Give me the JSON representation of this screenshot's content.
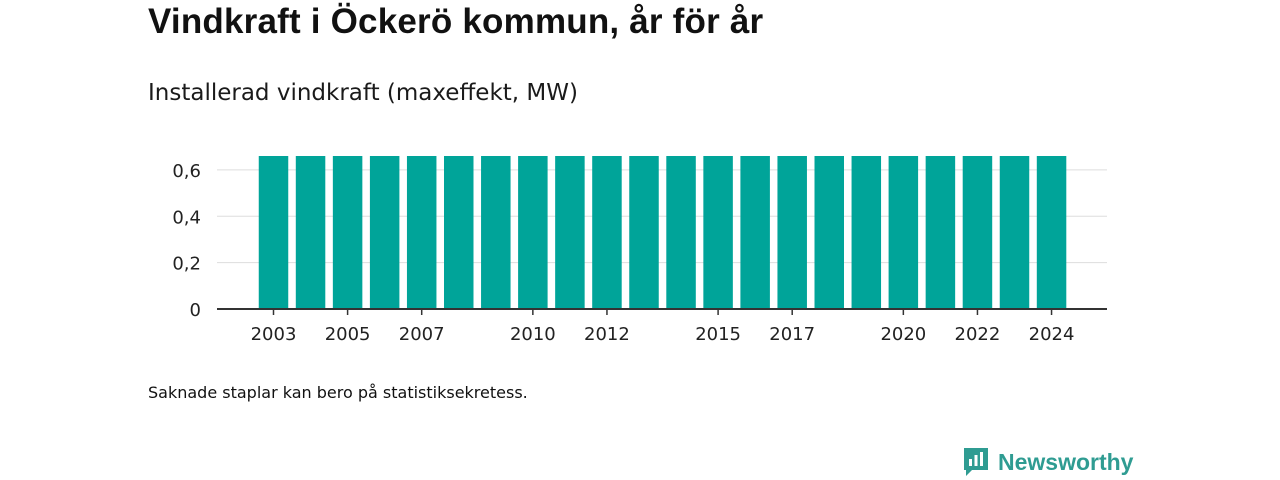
{
  "page": {
    "title": "Vindkraft i Öckerö kommun, år för år",
    "subtitle": "Installerad vindkraft (maxeffekt, MW)",
    "footnote": "Saknade staplar kan bero på statistiksekretess.",
    "brand": "Newsworthy",
    "brand_icon": "newsworthy-logo-icon",
    "bar_color": "#00a499",
    "brand_color": "#2f9c92"
  },
  "chart_data": {
    "type": "bar",
    "categories": [
      "2003",
      "2004",
      "2005",
      "2006",
      "2007",
      "2008",
      "2009",
      "2010",
      "2011",
      "2012",
      "2013",
      "2014",
      "2015",
      "2016",
      "2017",
      "2018",
      "2019",
      "2020",
      "2021",
      "2022",
      "2023",
      "2024"
    ],
    "values": [
      0.66,
      0.66,
      0.66,
      0.66,
      0.66,
      0.66,
      0.66,
      0.66,
      0.66,
      0.66,
      0.66,
      0.66,
      0.66,
      0.66,
      0.66,
      0.66,
      0.66,
      0.66,
      0.66,
      0.66,
      0.66,
      0.66
    ],
    "x_tick_labels": [
      "2003",
      "2005",
      "2007",
      "2010",
      "2012",
      "2015",
      "2017",
      "2020",
      "2022",
      "2024"
    ],
    "y_ticks": [
      0,
      0.2,
      0.4,
      0.6
    ],
    "y_tick_labels": [
      "0",
      "0,2",
      "0,4",
      "0,6"
    ],
    "ylim": [
      0,
      0.66
    ],
    "grid": true,
    "legend": "none"
  }
}
